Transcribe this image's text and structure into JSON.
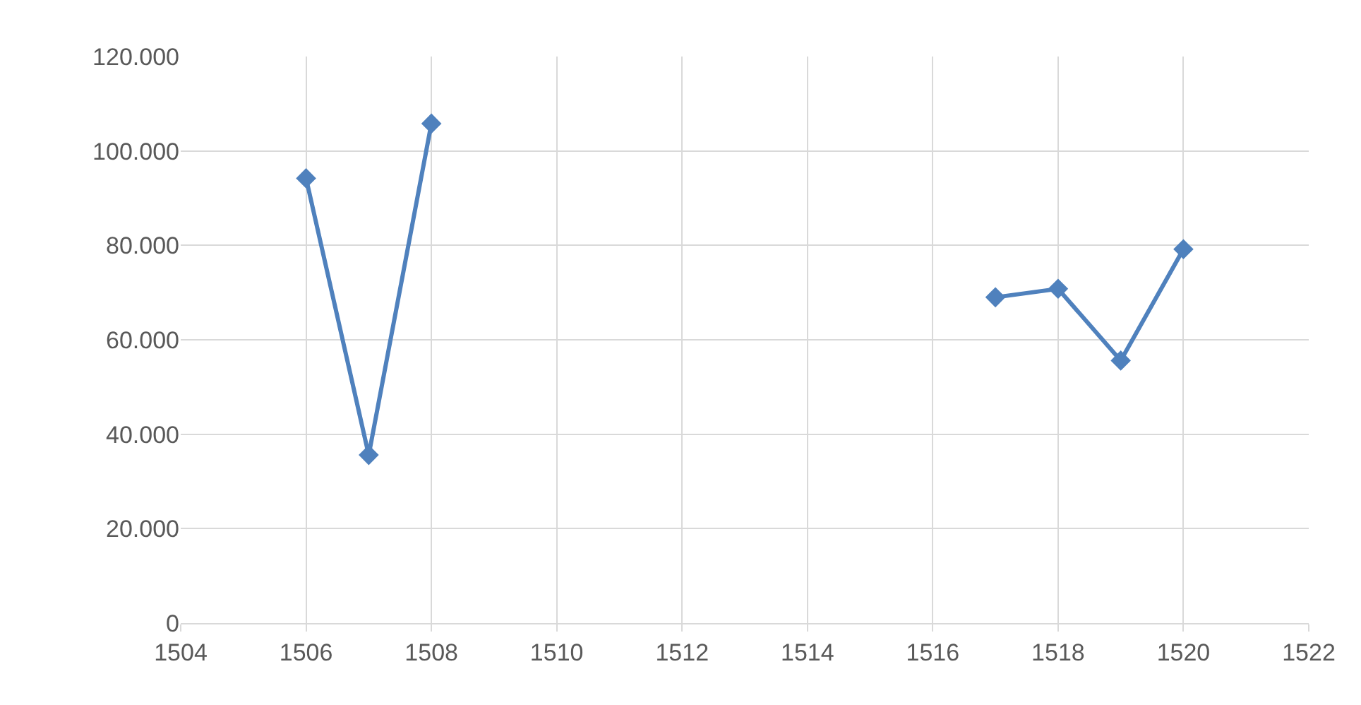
{
  "chart_data": {
    "type": "line",
    "x": [
      1506,
      1507,
      1508,
      1509,
      1510,
      1511,
      1512,
      1513,
      1514,
      1515,
      1516,
      1517,
      1518,
      1519,
      1520
    ],
    "series": [
      {
        "color": "#4f81bd",
        "values": [
          94200,
          35600,
          105800,
          null,
          null,
          null,
          null,
          null,
          null,
          null,
          null,
          69000,
          70800,
          55600,
          79200
        ]
      }
    ],
    "xlim": [
      1504,
      1522
    ],
    "xticks": [
      1504,
      1506,
      1508,
      1510,
      1512,
      1514,
      1516,
      1518,
      1520,
      1522
    ],
    "ylim": [
      0,
      120000
    ],
    "yticks": [
      {
        "value": 0,
        "label": "0"
      },
      {
        "value": 20000,
        "label": "20.000"
      },
      {
        "value": 40000,
        "label": "40.000"
      },
      {
        "value": 60000,
        "label": "60.000"
      },
      {
        "value": 80000,
        "label": "80.000"
      },
      {
        "value": 100000,
        "label": "100.000"
      },
      {
        "value": 120000,
        "label": "120.000"
      }
    ],
    "grid": true,
    "legend": false,
    "marker": "diamond",
    "line_style": "solid"
  }
}
